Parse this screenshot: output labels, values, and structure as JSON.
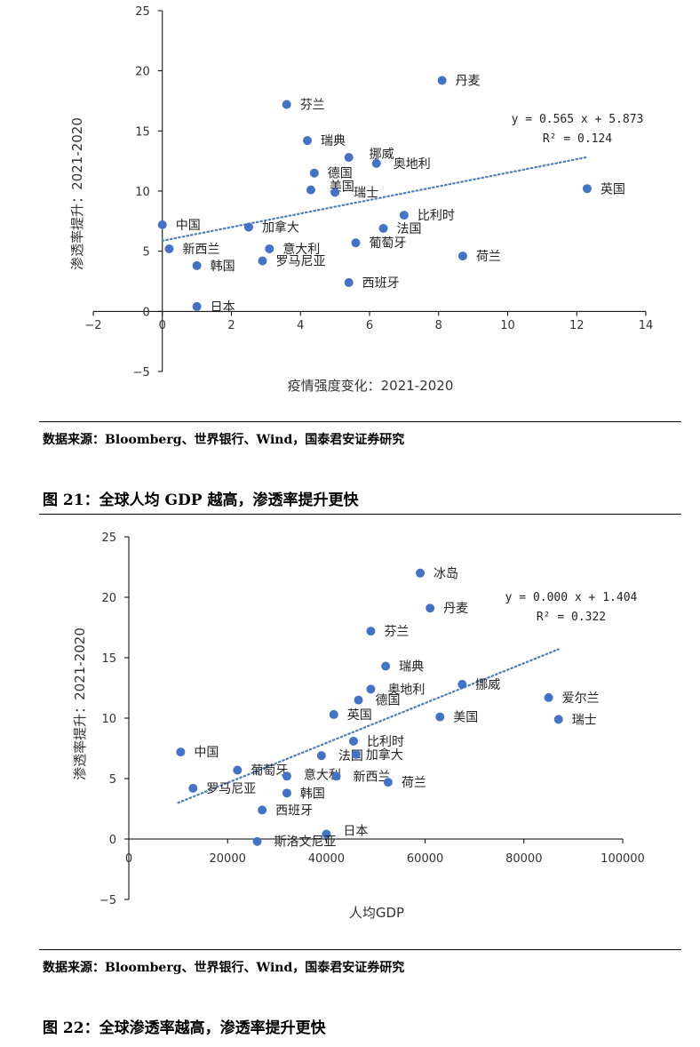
{
  "chart_data": [
    {
      "type": "scatter",
      "xlabel": "疫情强度变化：2021-2020",
      "ylabel": "渗透率提升：2021-2020",
      "xlim": [
        -2,
        14
      ],
      "ylim": [
        -5,
        25
      ],
      "xticks": [
        -2,
        0,
        2,
        4,
        6,
        8,
        10,
        12,
        14
      ],
      "yticks": [
        -5,
        0,
        5,
        10,
        15,
        20,
        25
      ],
      "trendline": {
        "equation": "y = 0.565 x + 5.873",
        "r2": "R² = 0.124",
        "slope": 0.565,
        "intercept": 5.873,
        "x_range": [
          0,
          12.3
        ],
        "style": "dotted"
      },
      "points": [
        {
          "label": "丹麦",
          "x": 8.1,
          "y": 19.2
        },
        {
          "label": "芬兰",
          "x": 3.6,
          "y": 17.2
        },
        {
          "label": "瑞典",
          "x": 4.2,
          "y": 14.2
        },
        {
          "label": "挪威",
          "x": 5.4,
          "y": 12.8
        },
        {
          "label": "奥地利",
          "x": 6.2,
          "y": 12.3
        },
        {
          "label": "德国",
          "x": 4.4,
          "y": 11.5
        },
        {
          "label": "美国",
          "x": 4.3,
          "y": 10.1
        },
        {
          "label": "瑞士",
          "x": 5.0,
          "y": 9.9
        },
        {
          "label": "英国",
          "x": 12.3,
          "y": 10.2
        },
        {
          "label": "比利时",
          "x": 7.0,
          "y": 8.0
        },
        {
          "label": "中国",
          "x": 0.0,
          "y": 7.2
        },
        {
          "label": "加拿大",
          "x": 2.5,
          "y": 7.0
        },
        {
          "label": "法国",
          "x": 6.4,
          "y": 6.9
        },
        {
          "label": "新西兰",
          "x": 0.2,
          "y": 5.2
        },
        {
          "label": "意大利",
          "x": 3.1,
          "y": 5.2
        },
        {
          "label": "葡萄牙",
          "x": 5.6,
          "y": 5.7
        },
        {
          "label": "荷兰",
          "x": 8.7,
          "y": 4.6
        },
        {
          "label": "罗马尼亚",
          "x": 2.9,
          "y": 4.2
        },
        {
          "label": "韩国",
          "x": 1.0,
          "y": 3.8
        },
        {
          "label": "西班牙",
          "x": 5.4,
          "y": 2.4
        },
        {
          "label": "日本",
          "x": 1.0,
          "y": 0.4
        }
      ]
    },
    {
      "type": "scatter",
      "xlabel": "人均GDP",
      "ylabel": "渗透率提升：2021-2020",
      "xlim": [
        0,
        100000
      ],
      "ylim": [
        -5,
        25
      ],
      "xticks": [
        0,
        20000,
        40000,
        60000,
        80000,
        100000
      ],
      "yticks": [
        -5,
        0,
        5,
        10,
        15,
        20,
        25
      ],
      "trendline": {
        "equation": "y = 0.000 x + 1.404",
        "r2": "R² = 0.322",
        "x_range": [
          10000,
          87000
        ],
        "y_range": [
          3.0,
          15.7
        ],
        "style": "dotted"
      },
      "points": [
        {
          "label": "冰岛",
          "x": 59000,
          "y": 22.0
        },
        {
          "label": "丹麦",
          "x": 61000,
          "y": 19.1
        },
        {
          "label": "芬兰",
          "x": 49000,
          "y": 17.2
        },
        {
          "label": "瑞典",
          "x": 52000,
          "y": 14.3
        },
        {
          "label": "挪威",
          "x": 67500,
          "y": 12.8
        },
        {
          "label": "奥地利",
          "x": 49000,
          "y": 12.4
        },
        {
          "label": "德国",
          "x": 46500,
          "y": 11.5
        },
        {
          "label": "爱尔兰",
          "x": 85000,
          "y": 11.7
        },
        {
          "label": "英国",
          "x": 41500,
          "y": 10.3
        },
        {
          "label": "美国",
          "x": 63000,
          "y": 10.1
        },
        {
          "label": "瑞士",
          "x": 87000,
          "y": 9.9
        },
        {
          "label": "比利时",
          "x": 45500,
          "y": 8.1
        },
        {
          "label": "中国",
          "x": 10500,
          "y": 7.2
        },
        {
          "label": "法国",
          "x": 39000,
          "y": 6.9
        },
        {
          "label": "加拿大",
          "x": 46000,
          "y": 7.0
        },
        {
          "label": "葡萄牙",
          "x": 22000,
          "y": 5.7
        },
        {
          "label": "意大利",
          "x": 32000,
          "y": 5.2
        },
        {
          "label": "新西兰",
          "x": 42000,
          "y": 5.2
        },
        {
          "label": "荷兰",
          "x": 52500,
          "y": 4.7
        },
        {
          "label": "罗马尼亚",
          "x": 13000,
          "y": 4.2
        },
        {
          "label": "韩国",
          "x": 32000,
          "y": 3.8
        },
        {
          "label": "西班牙",
          "x": 27000,
          "y": 2.4
        },
        {
          "label": "日本",
          "x": 40000,
          "y": 0.4
        },
        {
          "label": "斯洛文尼亚",
          "x": 26000,
          "y": -0.2
        }
      ]
    }
  ],
  "source1": "数据来源：Bloomberg、世界银行、Wind，国泰君安证券研究",
  "figure21_title": "图 21：全球人均 GDP 越高，渗透率提升更快",
  "source2": "数据来源：Bloomberg、世界银行、Wind，国泰君安证券研究",
  "figure22_title": "图 22：全球渗透率越高，渗透率提升更快",
  "colors": {
    "point": "#4472C4",
    "trend": "#4A7EBB",
    "axis": "#000000"
  }
}
